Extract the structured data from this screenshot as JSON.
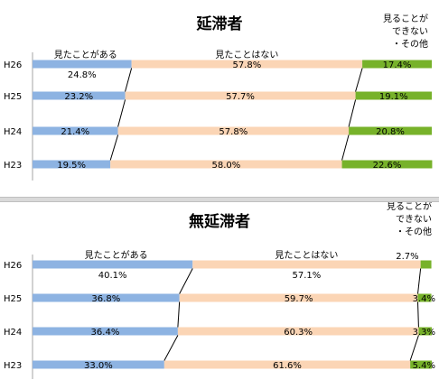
{
  "chart_data": [
    {
      "type": "bar",
      "stacked": true,
      "orientation": "horizontal",
      "percent": true,
      "title": "延滞者",
      "categories": [
        "H26",
        "H25",
        "H24",
        "H23"
      ],
      "series": [
        {
          "name": "見たことがある",
          "values": [
            24.8,
            23.2,
            21.4,
            19.5
          ],
          "labels": [
            "24.8%",
            "23.2%",
            "21.4%",
            "19.5%"
          ]
        },
        {
          "name": "見たことはない",
          "values": [
            57.8,
            57.7,
            57.8,
            58.0
          ],
          "labels": [
            "57.8%",
            "57.7%",
            "57.8%",
            "58.0%"
          ]
        },
        {
          "name": "見ることができない・その他",
          "values": [
            17.4,
            19.1,
            20.8,
            22.6
          ],
          "labels": [
            "17.4%",
            "19.1%",
            "20.8%",
            "22.6%"
          ]
        }
      ],
      "legend_in_chart": [
        "見たことがある",
        "見たことはない",
        "見ることが",
        "できない",
        "・その他"
      ],
      "colors": [
        "#8db3e2",
        "#fbd5b5",
        "#77b22a"
      ],
      "xlim": [
        0,
        100
      ]
    },
    {
      "type": "bar",
      "stacked": true,
      "orientation": "horizontal",
      "percent": true,
      "title": "無延滞者",
      "categories": [
        "H26",
        "H25",
        "H24",
        "H23"
      ],
      "series": [
        {
          "name": "見たことがある",
          "values": [
            40.1,
            36.8,
            36.4,
            33.0
          ],
          "labels": [
            "40.1%",
            "36.8%",
            "36.4%",
            "33.0%"
          ]
        },
        {
          "name": "見たことはない",
          "values": [
            57.1,
            59.7,
            60.3,
            61.6
          ],
          "labels": [
            "57.1%",
            "59.7%",
            "60.3%",
            "61.6%"
          ]
        },
        {
          "name": "見ることができない・その他",
          "values": [
            2.7,
            3.4,
            3.3,
            5.4
          ],
          "labels": [
            "2.7%",
            "3.4%",
            "3.3%",
            "5.4%"
          ]
        }
      ],
      "legend_in_chart": [
        "見たことがある",
        "見たことはない",
        "見ることが",
        "できない",
        "・その他"
      ],
      "colors": [
        "#8db3e2",
        "#fbd5b5",
        "#77b22a"
      ],
      "xlim": [
        0,
        100
      ]
    }
  ]
}
